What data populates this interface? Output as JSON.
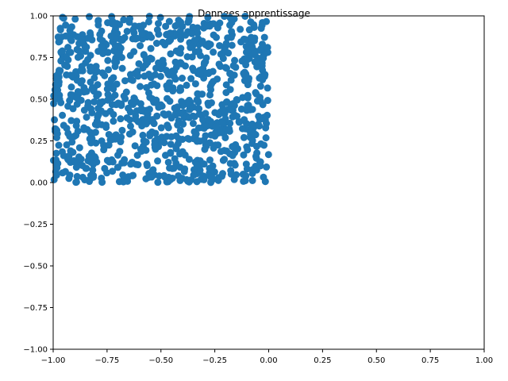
{
  "chart_data": {
    "type": "scatter",
    "title": "Donnees apprentissage",
    "xlabel": "",
    "ylabel": "",
    "xlim": [
      -1.0,
      1.0
    ],
    "ylim": [
      -1.0,
      1.0
    ],
    "xticks": [
      "−1.00",
      "−0.75",
      "−0.50",
      "−0.25",
      "0.00",
      "0.25",
      "0.50",
      "0.75",
      "1.00"
    ],
    "yticks": [
      "−1.00",
      "−0.75",
      "−0.50",
      "−0.25",
      "0.00",
      "0.25",
      "0.50",
      "0.75",
      "1.00"
    ],
    "grid": false,
    "marker_color": "#1f77b4",
    "series": [
      {
        "x_range": [
          -1.0,
          0.0
        ],
        "y_range": [
          0.0,
          1.0
        ],
        "count": 1000,
        "distribution": "uniform"
      }
    ]
  }
}
